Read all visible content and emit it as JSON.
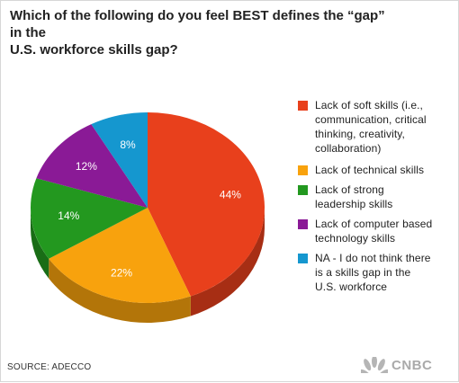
{
  "chart_data": {
    "type": "pie",
    "title_lines": [
      "Which of the following do you feel BEST defines the “gap” in the",
      "U.S. workforce skills gap?"
    ],
    "slices": [
      {
        "label_lines": [
          "Lack of soft skills (i.e.,",
          "communication, critical",
          "thinking, creativity,",
          "collaboration)"
        ],
        "value": 44,
        "display": "44%",
        "color": "#e8401c"
      },
      {
        "label_lines": [
          "Lack of technical skills"
        ],
        "value": 22,
        "display": "22%",
        "color": "#f8a20d"
      },
      {
        "label_lines": [
          "Lack of strong",
          "leadership skills"
        ],
        "value": 14,
        "display": "14%",
        "color": "#23981f"
      },
      {
        "label_lines": [
          "Lack of computer based",
          "technology skills"
        ],
        "value": 12,
        "display": "12%",
        "color": "#8a1a96"
      },
      {
        "label_lines": [
          "NA - I do not think there",
          "is a skills gap in the",
          "U.S. workforce"
        ],
        "value": 8,
        "display": "8%",
        "color": "#1597cf"
      }
    ],
    "legend_position": "right"
  },
  "footer": {
    "source": "SOURCE: ADECCO",
    "brand": "CNBC"
  },
  "icons": {
    "brand": "nbc-peacock-icon"
  }
}
